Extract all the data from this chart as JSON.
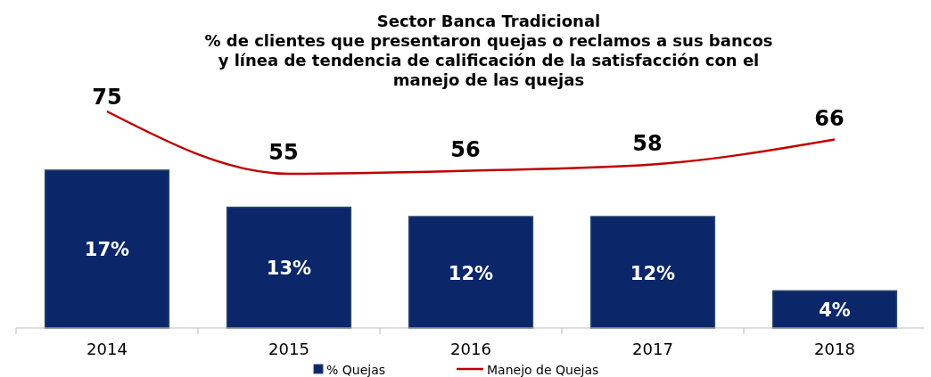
{
  "chart_data": {
    "type": "bar",
    "title": "Sector Banca Tradicional\n% de clientes que presentaron quejas o reclamos a sus bancos\ny línea de tendencia de calificación de la satisfacción con el\nmanejo de las quejas",
    "categories": [
      "2014",
      "2015",
      "2016",
      "2017",
      "2018"
    ],
    "series": [
      {
        "name": "% Quejas",
        "color": "#0b2669",
        "values": [
          17,
          13,
          12,
          12,
          4
        ],
        "value_labels": [
          "17%",
          "13%",
          "12%",
          "12%",
          "4%"
        ]
      },
      {
        "name": "Manejo de Quejas",
        "type": "line",
        "axis": "y2",
        "color": "#c00000",
        "values": [
          75,
          55,
          56,
          58,
          66
        ]
      }
    ],
    "data_labels": true,
    "legend": "bottom"
  }
}
